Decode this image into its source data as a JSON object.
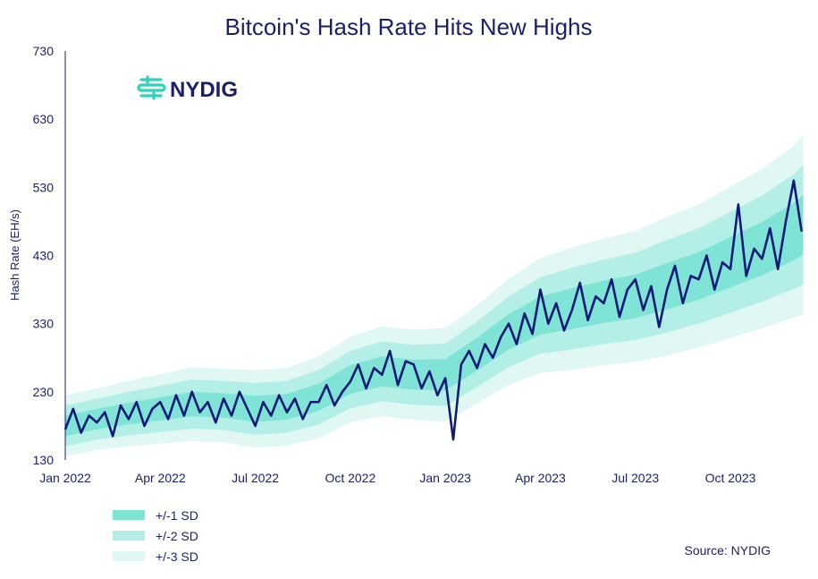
{
  "logo": {
    "text": "NYDIG"
  },
  "source": "Source: NYDIG",
  "colors": {
    "line": "#0f1a78",
    "sd1": "#7fe3d6",
    "sd2": "#b3efe6",
    "sd3": "#e0f7f4",
    "text": "#1b1f6b",
    "logo": "#2fd2b6"
  },
  "chart_data": {
    "type": "line",
    "title": "Bitcoin's Hash Rate Hits New Highs",
    "xlabel": "",
    "ylabel": "Hash Rate (EH/s)",
    "ylim": [
      130,
      730
    ],
    "yticks": [
      130,
      230,
      330,
      430,
      530,
      630,
      730
    ],
    "xticks": [
      {
        "label": "Jan 2022",
        "month": 0
      },
      {
        "label": "Apr 2022",
        "month": 3
      },
      {
        "label": "Jul 2022",
        "month": 6
      },
      {
        "label": "Oct 2022",
        "month": 9
      },
      {
        "label": "Jan 2023",
        "month": 12
      },
      {
        "label": "Apr 2023",
        "month": 15
      },
      {
        "label": "Jul 2023",
        "month": 18
      },
      {
        "label": "Oct 2023",
        "month": 21
      }
    ],
    "x_unit": "months since Jan 2022",
    "x_step": 0.25,
    "series": [
      {
        "name": "Hash Rate",
        "values": [
          175,
          205,
          170,
          195,
          185,
          200,
          165,
          210,
          190,
          215,
          180,
          205,
          215,
          190,
          225,
          195,
          230,
          200,
          215,
          185,
          220,
          195,
          230,
          205,
          180,
          215,
          195,
          225,
          200,
          220,
          190,
          215,
          215,
          240,
          210,
          230,
          245,
          270,
          235,
          265,
          255,
          290,
          240,
          275,
          270,
          235,
          260,
          225,
          250,
          160,
          270,
          290,
          265,
          300,
          280,
          310,
          330,
          300,
          345,
          315,
          380,
          330,
          360,
          320,
          350,
          390,
          335,
          370,
          360,
          395,
          340,
          380,
          395,
          350,
          385,
          325,
          380,
          415,
          360,
          400,
          395,
          430,
          380,
          420,
          410,
          505,
          400,
          440,
          425,
          470,
          410,
          480,
          540,
          465
        ]
      }
    ],
    "bands": {
      "months": [
        0,
        1,
        2,
        3,
        4,
        5,
        6,
        7,
        8,
        9,
        10,
        11,
        12,
        13,
        14,
        15,
        16,
        17,
        18,
        19,
        20,
        21,
        22,
        23,
        23.3
      ],
      "mean": [
        180,
        190,
        198,
        205,
        212,
        210,
        205,
        208,
        222,
        248,
        260,
        255,
        255,
        285,
        318,
        342,
        352,
        362,
        370,
        385,
        400,
        420,
        440,
        465,
        475
      ],
      "sd": [
        15,
        15,
        16,
        17,
        18,
        18,
        19,
        19,
        20,
        21,
        22,
        22,
        23,
        24,
        26,
        28,
        30,
        31,
        32,
        34,
        35,
        37,
        39,
        42,
        44
      ]
    },
    "legend": [
      "+/-1 SD",
      "+/-2 SD",
      "+/-3 SD"
    ],
    "legend_placement": "bottom-left",
    "grid": false
  }
}
